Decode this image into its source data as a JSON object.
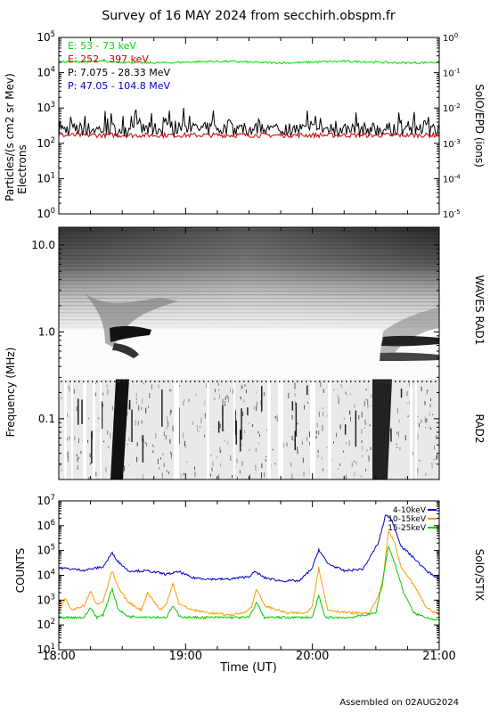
{
  "title": "Survey of 16 MAY 2024 from secchirh.obspm.fr",
  "footer": "Assembled on 02AUG2024",
  "time_axis": {
    "label": "Time (UT)",
    "ticks": [
      "18:00",
      "19:00",
      "20:00",
      "21:00"
    ],
    "range_hours": [
      18,
      21
    ]
  },
  "chart_data": [
    {
      "id": "particles",
      "type": "line",
      "ylabel": "Particles/(s cm2 sr Mev)",
      "ylabel2": "Electrons",
      "right_label": "SolO/EPD (ions)",
      "yscale": "log",
      "ylim": [
        1,
        100000
      ],
      "y_ticks": [
        {
          "base": "10",
          "exp": "0",
          "v": 1
        },
        {
          "base": "10",
          "exp": "1",
          "v": 10
        },
        {
          "base": "10",
          "exp": "2",
          "v": 100
        },
        {
          "base": "10",
          "exp": "3",
          "v": 1000
        },
        {
          "base": "10",
          "exp": "4",
          "v": 10000
        },
        {
          "base": "10",
          "exp": "5",
          "v": 100000
        }
      ],
      "y2lim": [
        1e-05,
        1
      ],
      "y2_ticks": [
        {
          "base": "10",
          "exp": "0",
          "v": 1
        },
        {
          "base": "10",
          "exp": "-1",
          "v": 0.1
        },
        {
          "base": "10",
          "exp": "-2",
          "v": 0.01
        },
        {
          "base": "10",
          "exp": "-3",
          "v": 0.001
        },
        {
          "base": "10",
          "exp": "-4",
          "v": 0.0001
        },
        {
          "base": "10",
          "exp": "-5",
          "v": 1e-05
        }
      ],
      "series": [
        {
          "name": "E: 53 - 73 keV",
          "color": "#00dd00",
          "level": 20000,
          "jitter": 0.03
        },
        {
          "name": "E: 252 - 397 keV",
          "color": "#cc0000",
          "level": 170,
          "jitter": 0.07
        },
        {
          "name": "P: 7.075 - 28.33 MeV",
          "color": "#000000",
          "level": 250,
          "jitter": 0.2
        },
        {
          "name": "P: 47.05 - 104.8 MeV",
          "color": "#0000cc",
          "level": null,
          "jitter": 0
        }
      ]
    },
    {
      "id": "waves",
      "type": "heatmap",
      "ylabel": "Frequency (MHz)",
      "yscale": "log",
      "ylim": [
        0.02,
        16
      ],
      "y_ticks": [
        "0.1",
        "1.0",
        "10.0"
      ],
      "y_tick_values": [
        0.1,
        1.0,
        10.0
      ],
      "right_label_1": "WAVES RAD1",
      "right_label_2": "RAD2",
      "bursts": [
        {
          "time": "18:27",
          "type": "III"
        },
        {
          "time": "20:32",
          "type": "III"
        }
      ]
    },
    {
      "id": "stix",
      "type": "line",
      "ylabel": "COUNTS",
      "right_label": "SolO/STIX",
      "yscale": "log",
      "ylim": [
        10,
        10000000
      ],
      "y_ticks": [
        {
          "base": "10",
          "exp": "1",
          "v": 10
        },
        {
          "base": "10",
          "exp": "2",
          "v": 100
        },
        {
          "base": "10",
          "exp": "3",
          "v": 1000
        },
        {
          "base": "10",
          "exp": "4",
          "v": 10000
        },
        {
          "base": "10",
          "exp": "5",
          "v": 100000
        },
        {
          "base": "10",
          "exp": "6",
          "v": 1000000
        },
        {
          "base": "10",
          "exp": "7",
          "v": 10000000
        }
      ],
      "series": [
        {
          "name": "4-10keV",
          "color": "#0000cc",
          "x": [
            18.0,
            18.2,
            18.35,
            18.42,
            18.47,
            18.55,
            18.7,
            18.85,
            18.95,
            19.05,
            19.2,
            19.35,
            19.5,
            19.55,
            19.62,
            19.75,
            19.9,
            20.0,
            20.05,
            20.12,
            20.25,
            20.4,
            20.52,
            20.58,
            20.63,
            20.7,
            20.8,
            20.9,
            21.0
          ],
          "y": [
            20000,
            16000,
            22000,
            80000,
            35000,
            15000,
            15000,
            11000,
            14000,
            8000,
            7000,
            7000,
            9000,
            14000,
            8000,
            6000,
            6000,
            20000,
            110000,
            30000,
            15000,
            18000,
            200000,
            3000000,
            1500000,
            150000,
            50000,
            15000,
            7000
          ]
        },
        {
          "name": "10-15keV",
          "color": "#ff9900",
          "x": [
            18.0,
            18.05,
            18.1,
            18.2,
            18.25,
            18.3,
            18.35,
            18.42,
            18.47,
            18.55,
            18.65,
            18.7,
            18.8,
            18.85,
            18.9,
            18.95,
            19.05,
            19.2,
            19.35,
            19.45,
            19.52,
            19.56,
            19.62,
            19.8,
            19.95,
            20.0,
            20.05,
            20.12,
            20.3,
            20.45,
            20.55,
            20.6,
            20.65,
            20.7,
            20.8,
            20.9,
            21.0
          ],
          "y": [
            300,
            1200,
            400,
            600,
            2200,
            700,
            900,
            15000,
            3000,
            800,
            400,
            2000,
            400,
            700,
            5000,
            700,
            400,
            300,
            250,
            300,
            500,
            3000,
            600,
            300,
            300,
            600,
            20000,
            400,
            300,
            300,
            3000,
            600000,
            200000,
            20000,
            4000,
            500,
            250
          ]
        },
        {
          "name": "15-25keV",
          "color": "#00cc00",
          "x": [
            18.0,
            18.2,
            18.25,
            18.3,
            18.35,
            18.42,
            18.47,
            18.55,
            18.7,
            18.85,
            18.9,
            18.95,
            19.05,
            19.3,
            19.5,
            19.56,
            19.62,
            19.8,
            20.0,
            20.05,
            20.1,
            20.3,
            20.5,
            20.55,
            20.6,
            20.65,
            20.72,
            20.8,
            20.9,
            21.0
          ],
          "y": [
            200,
            200,
            500,
            200,
            250,
            3000,
            400,
            220,
            210,
            200,
            600,
            220,
            200,
            200,
            200,
            800,
            200,
            200,
            200,
            1500,
            200,
            200,
            300,
            5000,
            150000,
            30000,
            2000,
            300,
            200,
            150
          ]
        }
      ]
    }
  ]
}
